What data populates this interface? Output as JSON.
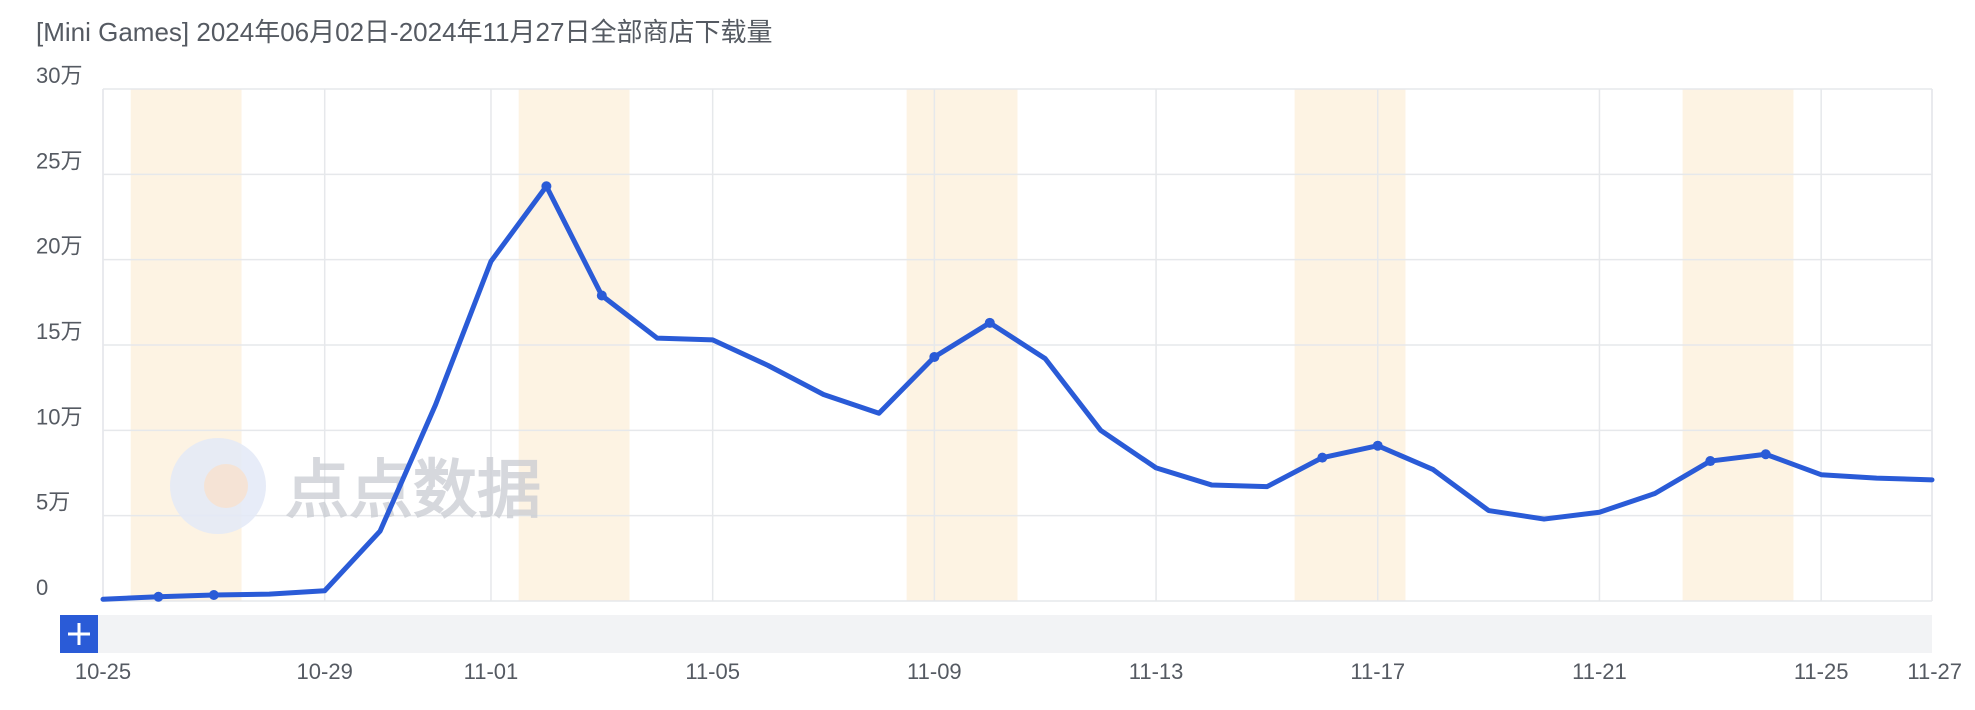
{
  "header": {
    "title": "[Mini Games] 2024年06月02日-2024年11月27日全部商店下载量"
  },
  "watermark": {
    "text": "点点数据"
  },
  "zoom_button": {
    "icon": "plus-icon",
    "label": "+"
  },
  "colors": {
    "line": "#2a5bd7",
    "weekend_band": "#fdf3e3",
    "grid": "#e6e8eb",
    "zoom_bar": "#f2f3f5",
    "button": "#2a5bd7"
  },
  "chart_data": {
    "type": "line",
    "title": "[Mini Games] 2024年06月02日-2024年11月27日全部商店下载量",
    "xlabel": "",
    "ylabel": "",
    "ylim": [
      0,
      300000
    ],
    "y_ticks": [
      0,
      50000,
      100000,
      150000,
      200000,
      250000,
      300000
    ],
    "y_tick_labels": [
      "0",
      "5万",
      "10万",
      "15万",
      "20万",
      "25万",
      "30万"
    ],
    "x_tick_labels": [
      "10-25",
      "10-29",
      "11-01",
      "11-05",
      "11-09",
      "11-13",
      "11-17",
      "11-21",
      "11-25",
      "11-27"
    ],
    "x_tick_dates": [
      "2024-10-25",
      "2024-10-29",
      "2024-11-01",
      "2024-11-05",
      "2024-11-09",
      "2024-11-13",
      "2024-11-17",
      "2024-11-21",
      "2024-11-25",
      "2024-11-27"
    ],
    "weekends": [
      [
        "2024-10-26",
        "2024-10-27"
      ],
      [
        "2024-11-02",
        "2024-11-03"
      ],
      [
        "2024-11-09",
        "2024-11-10"
      ],
      [
        "2024-11-16",
        "2024-11-17"
      ],
      [
        "2024-11-23",
        "2024-11-24"
      ]
    ],
    "grid": true,
    "legend": "none",
    "series": [
      {
        "x": [
          "2024-10-25",
          "2024-10-26",
          "2024-10-27",
          "2024-10-28",
          "2024-10-29",
          "2024-10-30",
          "2024-10-31",
          "2024-11-01",
          "2024-11-02",
          "2024-11-03",
          "2024-11-04",
          "2024-11-05",
          "2024-11-06",
          "2024-11-07",
          "2024-11-08",
          "2024-11-09",
          "2024-11-10",
          "2024-11-11",
          "2024-11-12",
          "2024-11-13",
          "2024-11-14",
          "2024-11-15",
          "2024-11-16",
          "2024-11-17",
          "2024-11-18",
          "2024-11-19",
          "2024-11-20",
          "2024-11-21",
          "2024-11-22",
          "2024-11-23",
          "2024-11-24",
          "2024-11-25",
          "2024-11-26",
          "2024-11-27"
        ],
        "values": [
          1000,
          2500,
          3500,
          4000,
          6000,
          41000,
          115000,
          199000,
          243000,
          179000,
          154000,
          153000,
          138000,
          121000,
          110000,
          143000,
          163000,
          142000,
          100000,
          78000,
          68000,
          67000,
          84000,
          91000,
          77000,
          53000,
          48000,
          52000,
          63000,
          82000,
          86000,
          74000,
          72000,
          71000
        ],
        "markers": [
          "2024-10-26",
          "2024-10-27",
          "2024-11-02",
          "2024-11-03",
          "2024-11-09",
          "2024-11-10",
          "2024-11-16",
          "2024-11-17",
          "2024-11-23",
          "2024-11-24"
        ]
      }
    ]
  }
}
